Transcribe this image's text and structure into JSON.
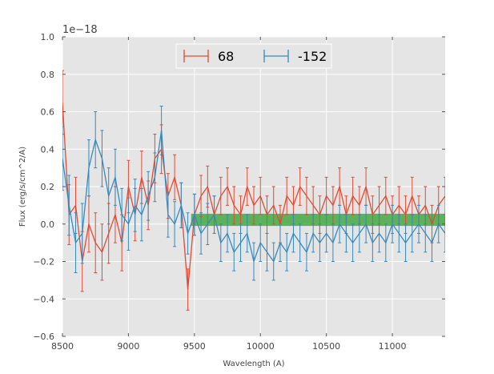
{
  "chart_data": {
    "type": "line",
    "title": "",
    "xlabel": "Wavelength (A)",
    "ylabel": "Flux (erg/s/cm^2/A)",
    "y_scale_label": "1e−18",
    "xlim": [
      8500,
      11400
    ],
    "ylim": [
      -0.6,
      1.0
    ],
    "x_ticks": [
      8500,
      9000,
      9500,
      10000,
      10500,
      11000
    ],
    "x_tick_labels": [
      "8500",
      "9000",
      "9500",
      "10000",
      "10500",
      "11000"
    ],
    "y_ticks": [
      -0.6,
      -0.4,
      -0.2,
      0.0,
      0.2,
      0.4,
      0.6,
      0.8,
      1.0
    ],
    "y_tick_labels": [
      "−0.6",
      "−0.4",
      "−0.2",
      "0.0",
      "0.2",
      "0.4",
      "0.6",
      "0.8",
      "1.0"
    ],
    "grid": true,
    "legend_position": "top-center",
    "band": {
      "x_start": 9475,
      "x_end": 11400,
      "y_low": -0.01,
      "y_high": 0.055,
      "color": "#2ca02c"
    },
    "series": [
      {
        "name": "68",
        "color": "#e24a33",
        "x": [
          8500,
          8550,
          8600,
          8650,
          8700,
          8750,
          8800,
          8850,
          8900,
          8950,
          9000,
          9050,
          9100,
          9150,
          9200,
          9250,
          9300,
          9350,
          9400,
          9450,
          9500,
          9550,
          9600,
          9650,
          9700,
          9750,
          9800,
          9850,
          9900,
          9950,
          10000,
          10050,
          10100,
          10150,
          10200,
          10250,
          10300,
          10350,
          10400,
          10450,
          10500,
          10550,
          10600,
          10650,
          10700,
          10750,
          10800,
          10850,
          10900,
          10950,
          11000,
          11050,
          11100,
          11150,
          11200,
          11250,
          11300,
          11350,
          11400
        ],
        "y": [
          0.65,
          0.05,
          0.1,
          -0.2,
          0.0,
          -0.1,
          -0.15,
          -0.05,
          0.05,
          -0.1,
          0.2,
          0.05,
          0.25,
          0.1,
          0.35,
          0.4,
          0.15,
          0.25,
          0.1,
          -0.35,
          0.05,
          0.15,
          0.2,
          0.05,
          0.15,
          0.2,
          0.1,
          0.05,
          0.2,
          0.1,
          0.15,
          0.05,
          0.1,
          0.0,
          0.15,
          0.1,
          0.2,
          0.15,
          0.1,
          0.05,
          0.15,
          0.1,
          0.2,
          0.05,
          0.15,
          0.1,
          0.2,
          0.05,
          0.1,
          0.15,
          0.05,
          0.1,
          0.05,
          0.15,
          0.05,
          0.1,
          0.0,
          0.1,
          0.15
        ],
        "err": [
          0.17,
          0.16,
          0.15,
          0.16,
          0.15,
          0.16,
          0.15,
          0.16,
          0.15,
          0.15,
          0.14,
          0.14,
          0.14,
          0.13,
          0.13,
          0.13,
          0.12,
          0.12,
          0.12,
          0.11,
          0.11,
          0.11,
          0.11,
          0.1,
          0.1,
          0.1,
          0.1,
          0.1,
          0.1,
          0.1,
          0.1,
          0.1,
          0.1,
          0.1,
          0.1,
          0.1,
          0.1,
          0.1,
          0.1,
          0.1,
          0.1,
          0.1,
          0.1,
          0.1,
          0.1,
          0.1,
          0.1,
          0.1,
          0.1,
          0.1,
          0.1,
          0.1,
          0.1,
          0.1,
          0.1,
          0.1,
          0.1,
          0.1,
          0.1
        ]
      },
      {
        "name": "-152",
        "color": "#348abd",
        "x": [
          8500,
          8550,
          8600,
          8650,
          8700,
          8750,
          8800,
          8850,
          8900,
          8950,
          9000,
          9050,
          9100,
          9150,
          9200,
          9250,
          9300,
          9350,
          9400,
          9450,
          9500,
          9550,
          9600,
          9650,
          9700,
          9750,
          9800,
          9850,
          9900,
          9950,
          10000,
          10050,
          10100,
          10150,
          10200,
          10250,
          10300,
          10350,
          10400,
          10450,
          10500,
          10550,
          10600,
          10650,
          10700,
          10750,
          10800,
          10850,
          10900,
          10950,
          11000,
          11050,
          11100,
          11150,
          11200,
          11250,
          11300,
          11350,
          11400
        ],
        "y": [
          0.35,
          0.1,
          -0.1,
          -0.05,
          0.3,
          0.45,
          0.35,
          0.15,
          0.25,
          0.05,
          0.0,
          0.1,
          0.05,
          0.15,
          0.25,
          0.5,
          0.05,
          0.0,
          0.1,
          -0.05,
          0.05,
          -0.05,
          0.0,
          0.05,
          -0.1,
          -0.05,
          -0.15,
          -0.1,
          -0.05,
          -0.2,
          -0.1,
          -0.15,
          -0.2,
          -0.1,
          -0.15,
          -0.05,
          -0.1,
          -0.15,
          -0.05,
          -0.1,
          -0.05,
          -0.1,
          0.0,
          -0.05,
          -0.1,
          -0.05,
          0.0,
          -0.1,
          -0.05,
          -0.1,
          0.0,
          -0.05,
          -0.1,
          -0.05,
          0.0,
          -0.05,
          -0.1,
          0.0,
          -0.05
        ],
        "err": [
          0.17,
          0.16,
          0.16,
          0.16,
          0.15,
          0.15,
          0.15,
          0.15,
          0.15,
          0.14,
          0.14,
          0.14,
          0.14,
          0.13,
          0.13,
          0.13,
          0.12,
          0.12,
          0.12,
          0.11,
          0.11,
          0.11,
          0.11,
          0.1,
          0.1,
          0.1,
          0.1,
          0.1,
          0.1,
          0.1,
          0.1,
          0.1,
          0.1,
          0.1,
          0.1,
          0.1,
          0.1,
          0.1,
          0.1,
          0.1,
          0.1,
          0.1,
          0.1,
          0.1,
          0.1,
          0.1,
          0.1,
          0.1,
          0.1,
          0.1,
          0.1,
          0.1,
          0.1,
          0.1,
          0.1,
          0.1,
          0.1,
          0.1,
          0.1
        ]
      }
    ],
    "colors": {
      "plot_background": "#e5e5e5",
      "grid": "#ffffff",
      "axis_text": "#444444"
    }
  }
}
